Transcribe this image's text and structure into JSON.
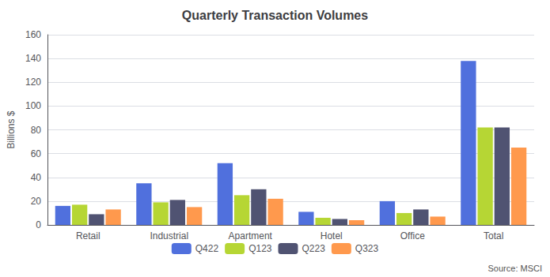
{
  "chart_data": {
    "type": "bar",
    "title": "Quarterly Transaction Volumes",
    "ylabel": "Billions $",
    "annotations": [
      "Source: MSCI"
    ],
    "categories": [
      "Retail",
      "Industrial",
      "Apartment",
      "Hotel",
      "Office",
      "Total"
    ],
    "series": [
      {
        "name": "Q422",
        "values": [
          16,
          35,
          52,
          11,
          20,
          138
        ]
      },
      {
        "name": "Q123",
        "values": [
          17,
          19,
          25,
          6,
          10,
          82
        ]
      },
      {
        "name": "Q223",
        "values": [
          9,
          21,
          30,
          5,
          13,
          82
        ]
      },
      {
        "name": "Q323",
        "values": [
          13,
          15,
          22,
          4,
          7,
          65
        ]
      }
    ],
    "ylim": [
      0,
      160
    ],
    "yticks": [
      0,
      20,
      40,
      60,
      80,
      100,
      120,
      140,
      160
    ],
    "grid": true,
    "legend": "bottom"
  }
}
